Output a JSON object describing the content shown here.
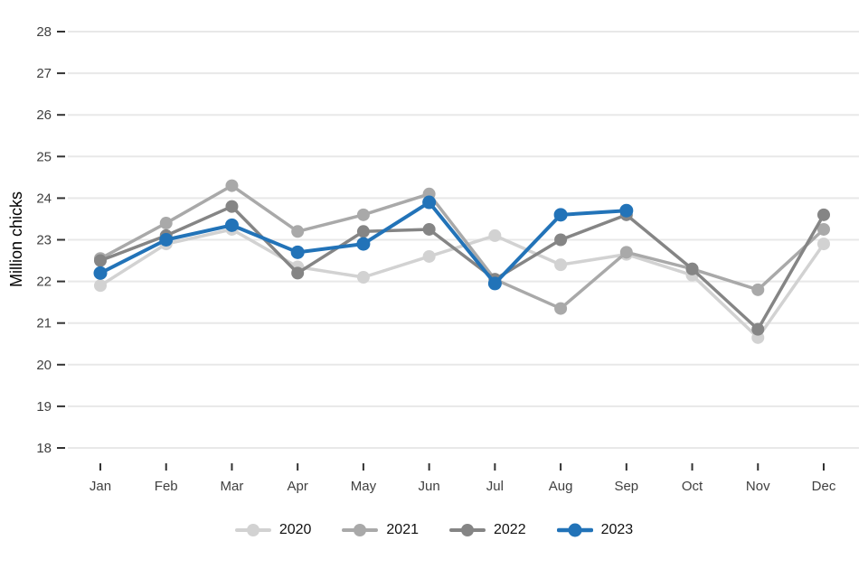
{
  "chart_data": {
    "type": "line",
    "title": "",
    "ylabel": "Million chicks",
    "xlabel": "",
    "ylim": [
      18,
      28
    ],
    "yticks": [
      18,
      19,
      20,
      21,
      22,
      23,
      24,
      25,
      26,
      27,
      28
    ],
    "grid": "horizontal-major",
    "legend_position": "bottom-center",
    "categories": [
      "Jan",
      "Feb",
      "Mar",
      "Apr",
      "May",
      "Jun",
      "Jul",
      "Aug",
      "Sep",
      "Oct",
      "Nov",
      "Dec"
    ],
    "series": [
      {
        "name": "2020",
        "color": "#d2d2d2",
        "values": [
          21.9,
          22.9,
          23.25,
          22.35,
          22.1,
          22.6,
          23.1,
          22.4,
          22.65,
          22.15,
          20.65,
          22.9
        ]
      },
      {
        "name": "2021",
        "color": "#a9a9a9",
        "values": [
          22.55,
          23.4,
          24.3,
          23.2,
          23.6,
          24.1,
          22.05,
          21.35,
          22.7,
          22.3,
          21.8,
          23.25
        ]
      },
      {
        "name": "2022",
        "color": "#858585",
        "values": [
          22.5,
          23.1,
          23.8,
          22.2,
          23.2,
          23.25,
          22.05,
          23.0,
          23.6,
          22.3,
          20.85,
          23.6
        ]
      },
      {
        "name": "2023",
        "color": "#2273b8",
        "emphasis": true,
        "values": [
          22.2,
          23.0,
          23.35,
          22.7,
          22.9,
          23.9,
          21.95,
          23.6,
          23.7,
          null,
          null,
          null
        ]
      }
    ],
    "style": {
      "grid_color": "#e8e8e8",
      "tick_color": "#333333",
      "tick_label_color": "#404040",
      "axis_title_color": "#000000",
      "background": "#ffffff"
    }
  }
}
